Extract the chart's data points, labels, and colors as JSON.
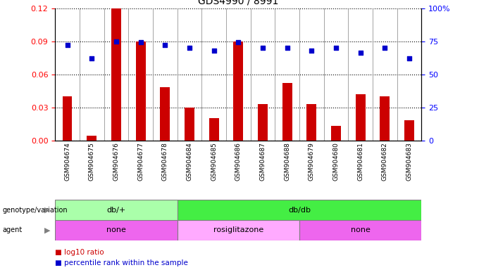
{
  "title": "GDS4990 / 8991",
  "samples": [
    "GSM904674",
    "GSM904675",
    "GSM904676",
    "GSM904677",
    "GSM904678",
    "GSM904684",
    "GSM904685",
    "GSM904686",
    "GSM904687",
    "GSM904688",
    "GSM904679",
    "GSM904680",
    "GSM904681",
    "GSM904682",
    "GSM904683"
  ],
  "log10_ratio": [
    0.04,
    0.004,
    0.12,
    0.09,
    0.048,
    0.03,
    0.02,
    0.09,
    0.033,
    0.052,
    0.033,
    0.013,
    0.042,
    0.04,
    0.018
  ],
  "percentile_rank": [
    72,
    62,
    75,
    74,
    72,
    70,
    68,
    74,
    70,
    70,
    68,
    70,
    66,
    70,
    62
  ],
  "bar_color": "#cc0000",
  "dot_color": "#0000cc",
  "ylim_left": [
    0,
    0.12
  ],
  "ylim_right": [
    0,
    100
  ],
  "yticks_left": [
    0,
    0.03,
    0.06,
    0.09,
    0.12
  ],
  "yticks_right": [
    0,
    25,
    50,
    75,
    100
  ],
  "genotype_groups": [
    {
      "label": "db/+",
      "start": 0,
      "end": 5,
      "color": "#aaffaa"
    },
    {
      "label": "db/db",
      "start": 5,
      "end": 15,
      "color": "#44ee44"
    }
  ],
  "agent_groups": [
    {
      "label": "none",
      "start": 0,
      "end": 5,
      "color": "#ee66ee"
    },
    {
      "label": "rosiglitazone",
      "start": 5,
      "end": 10,
      "color": "#ffaaff"
    },
    {
      "label": "none",
      "start": 10,
      "end": 15,
      "color": "#ee66ee"
    }
  ],
  "legend_bar_label": "log10 ratio",
  "legend_dot_label": "percentile rank within the sample",
  "background_color": "#ffffff"
}
